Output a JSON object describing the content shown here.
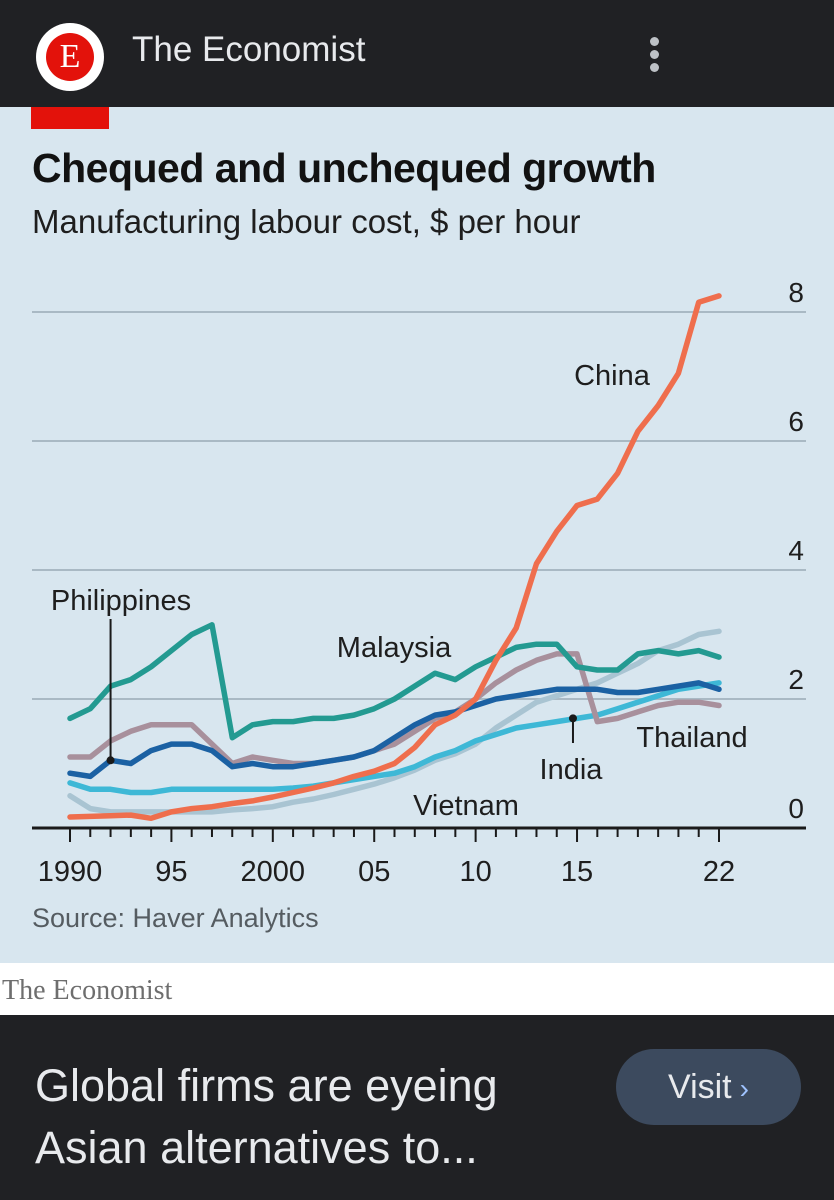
{
  "app": {
    "logo_letter": "E",
    "source_name": "The Economist",
    "wordmark": "The Economist",
    "headline": "Global firms are eyeing Asian alternatives to...",
    "visit_label": "Visit",
    "visit_chevron": "›",
    "colors": {
      "brand_red": "#e3120b",
      "card_bg": "#d8e6ef",
      "bar_bg": "#202124"
    }
  },
  "chart_data": {
    "type": "line",
    "title": "Chequed and unchequed growth",
    "subtitle": "Manufacturing labour cost, $ per hour",
    "source": "Source: Haver Analytics",
    "x_tick_labels": [
      "1990",
      "95",
      "2000",
      "05",
      "10",
      "15",
      "22"
    ],
    "x_tick_values": [
      1990,
      1995,
      2000,
      2005,
      2010,
      2015,
      2022
    ],
    "y_tick_labels": [
      "0",
      "2",
      "4",
      "6",
      "8"
    ],
    "y_tick_values": [
      0,
      2,
      4,
      6,
      8
    ],
    "xlim": [
      1990,
      2022
    ],
    "ylim": [
      0,
      8
    ],
    "grid": true,
    "series": [
      {
        "name": "Vietnam",
        "label": "Vietnam",
        "color": "#a9c4d2",
        "x": [
          1990,
          1991,
          1992,
          1993,
          1994,
          1995,
          1996,
          1997,
          1998,
          1999,
          2000,
          2001,
          2002,
          2003,
          2004,
          2005,
          2006,
          2007,
          2008,
          2009,
          2010,
          2011,
          2012,
          2013,
          2014,
          2015,
          2016,
          2017,
          2018,
          2019,
          2020,
          2021,
          2022
        ],
        "values": [
          0.5,
          0.3,
          0.25,
          0.25,
          0.25,
          0.25,
          0.25,
          0.25,
          0.28,
          0.3,
          0.33,
          0.4,
          0.45,
          0.52,
          0.6,
          0.68,
          0.78,
          0.9,
          1.05,
          1.15,
          1.3,
          1.55,
          1.75,
          1.95,
          2.05,
          2.15,
          2.25,
          2.4,
          2.55,
          2.75,
          2.85,
          3.0,
          3.05
        ]
      },
      {
        "name": "India",
        "label": "India",
        "color": "#3eb8d6",
        "x": [
          1990,
          1991,
          1992,
          1993,
          1994,
          1995,
          1996,
          1997,
          1998,
          1999,
          2000,
          2001,
          2002,
          2003,
          2004,
          2005,
          2006,
          2007,
          2008,
          2009,
          2010,
          2011,
          2012,
          2013,
          2014,
          2015,
          2016,
          2017,
          2018,
          2019,
          2020,
          2021,
          2022
        ],
        "values": [
          0.7,
          0.6,
          0.6,
          0.55,
          0.55,
          0.6,
          0.6,
          0.6,
          0.6,
          0.6,
          0.6,
          0.62,
          0.65,
          0.7,
          0.75,
          0.8,
          0.85,
          0.95,
          1.1,
          1.2,
          1.35,
          1.45,
          1.55,
          1.6,
          1.65,
          1.7,
          1.75,
          1.85,
          1.95,
          2.05,
          2.15,
          2.2,
          2.25
        ]
      },
      {
        "name": "Thailand",
        "label": "Thailand",
        "color": "#a8909c",
        "x": [
          1990,
          1991,
          1992,
          1993,
          1994,
          1995,
          1996,
          1997,
          1998,
          1999,
          2000,
          2001,
          2002,
          2003,
          2004,
          2005,
          2006,
          2007,
          2008,
          2009,
          2010,
          2011,
          2012,
          2013,
          2014,
          2015,
          2016,
          2017,
          2018,
          2019,
          2020,
          2021,
          2022
        ],
        "values": [
          1.1,
          1.1,
          1.35,
          1.5,
          1.6,
          1.6,
          1.6,
          1.3,
          1.0,
          1.1,
          1.05,
          1.0,
          1.0,
          1.05,
          1.1,
          1.2,
          1.3,
          1.5,
          1.7,
          1.8,
          2.0,
          2.25,
          2.45,
          2.6,
          2.7,
          2.7,
          1.65,
          1.7,
          1.8,
          1.9,
          1.95,
          1.95,
          1.9
        ]
      },
      {
        "name": "Philippines",
        "label": "Philippines",
        "color": "#1b61a3",
        "x": [
          1990,
          1991,
          1992,
          1993,
          1994,
          1995,
          1996,
          1997,
          1998,
          1999,
          2000,
          2001,
          2002,
          2003,
          2004,
          2005,
          2006,
          2007,
          2008,
          2009,
          2010,
          2011,
          2012,
          2013,
          2014,
          2015,
          2016,
          2017,
          2018,
          2019,
          2020,
          2021,
          2022
        ],
        "values": [
          0.85,
          0.8,
          1.05,
          1.0,
          1.2,
          1.3,
          1.3,
          1.2,
          0.95,
          1.0,
          0.95,
          0.95,
          1.0,
          1.05,
          1.1,
          1.2,
          1.4,
          1.6,
          1.75,
          1.8,
          1.9,
          2.0,
          2.05,
          2.1,
          2.15,
          2.15,
          2.15,
          2.1,
          2.1,
          2.15,
          2.2,
          2.25,
          2.15
        ]
      },
      {
        "name": "Malaysia",
        "label": "Malaysia",
        "color": "#239a91",
        "x": [
          1990,
          1991,
          1992,
          1993,
          1994,
          1995,
          1996,
          1997,
          1998,
          1999,
          2000,
          2001,
          2002,
          2003,
          2004,
          2005,
          2006,
          2007,
          2008,
          2009,
          2010,
          2011,
          2012,
          2013,
          2014,
          2015,
          2016,
          2017,
          2018,
          2019,
          2020,
          2021,
          2022
        ],
        "values": [
          1.7,
          1.85,
          2.2,
          2.3,
          2.5,
          2.75,
          3.0,
          3.15,
          1.4,
          1.6,
          1.65,
          1.65,
          1.7,
          1.7,
          1.75,
          1.85,
          2.0,
          2.2,
          2.4,
          2.3,
          2.5,
          2.65,
          2.8,
          2.85,
          2.85,
          2.5,
          2.45,
          2.45,
          2.7,
          2.75,
          2.7,
          2.75,
          2.65
        ]
      },
      {
        "name": "China",
        "label": "China",
        "color": "#ef6e4d",
        "x": [
          1990,
          1991,
          1992,
          1993,
          1994,
          1995,
          1996,
          1997,
          1998,
          1999,
          2000,
          2001,
          2002,
          2003,
          2004,
          2005,
          2006,
          2007,
          2008,
          2009,
          2010,
          2011,
          2012,
          2013,
          2014,
          2015,
          2016,
          2017,
          2018,
          2019,
          2020,
          2021,
          2022
        ],
        "values": [
          0.17,
          0.18,
          0.19,
          0.2,
          0.15,
          0.25,
          0.3,
          0.33,
          0.38,
          0.42,
          0.48,
          0.55,
          0.62,
          0.7,
          0.8,
          0.88,
          1.0,
          1.25,
          1.6,
          1.75,
          2.0,
          2.6,
          3.1,
          4.1,
          4.6,
          5.0,
          5.1,
          5.5,
          6.15,
          6.55,
          7.05,
          8.15,
          8.25
        ]
      }
    ]
  }
}
